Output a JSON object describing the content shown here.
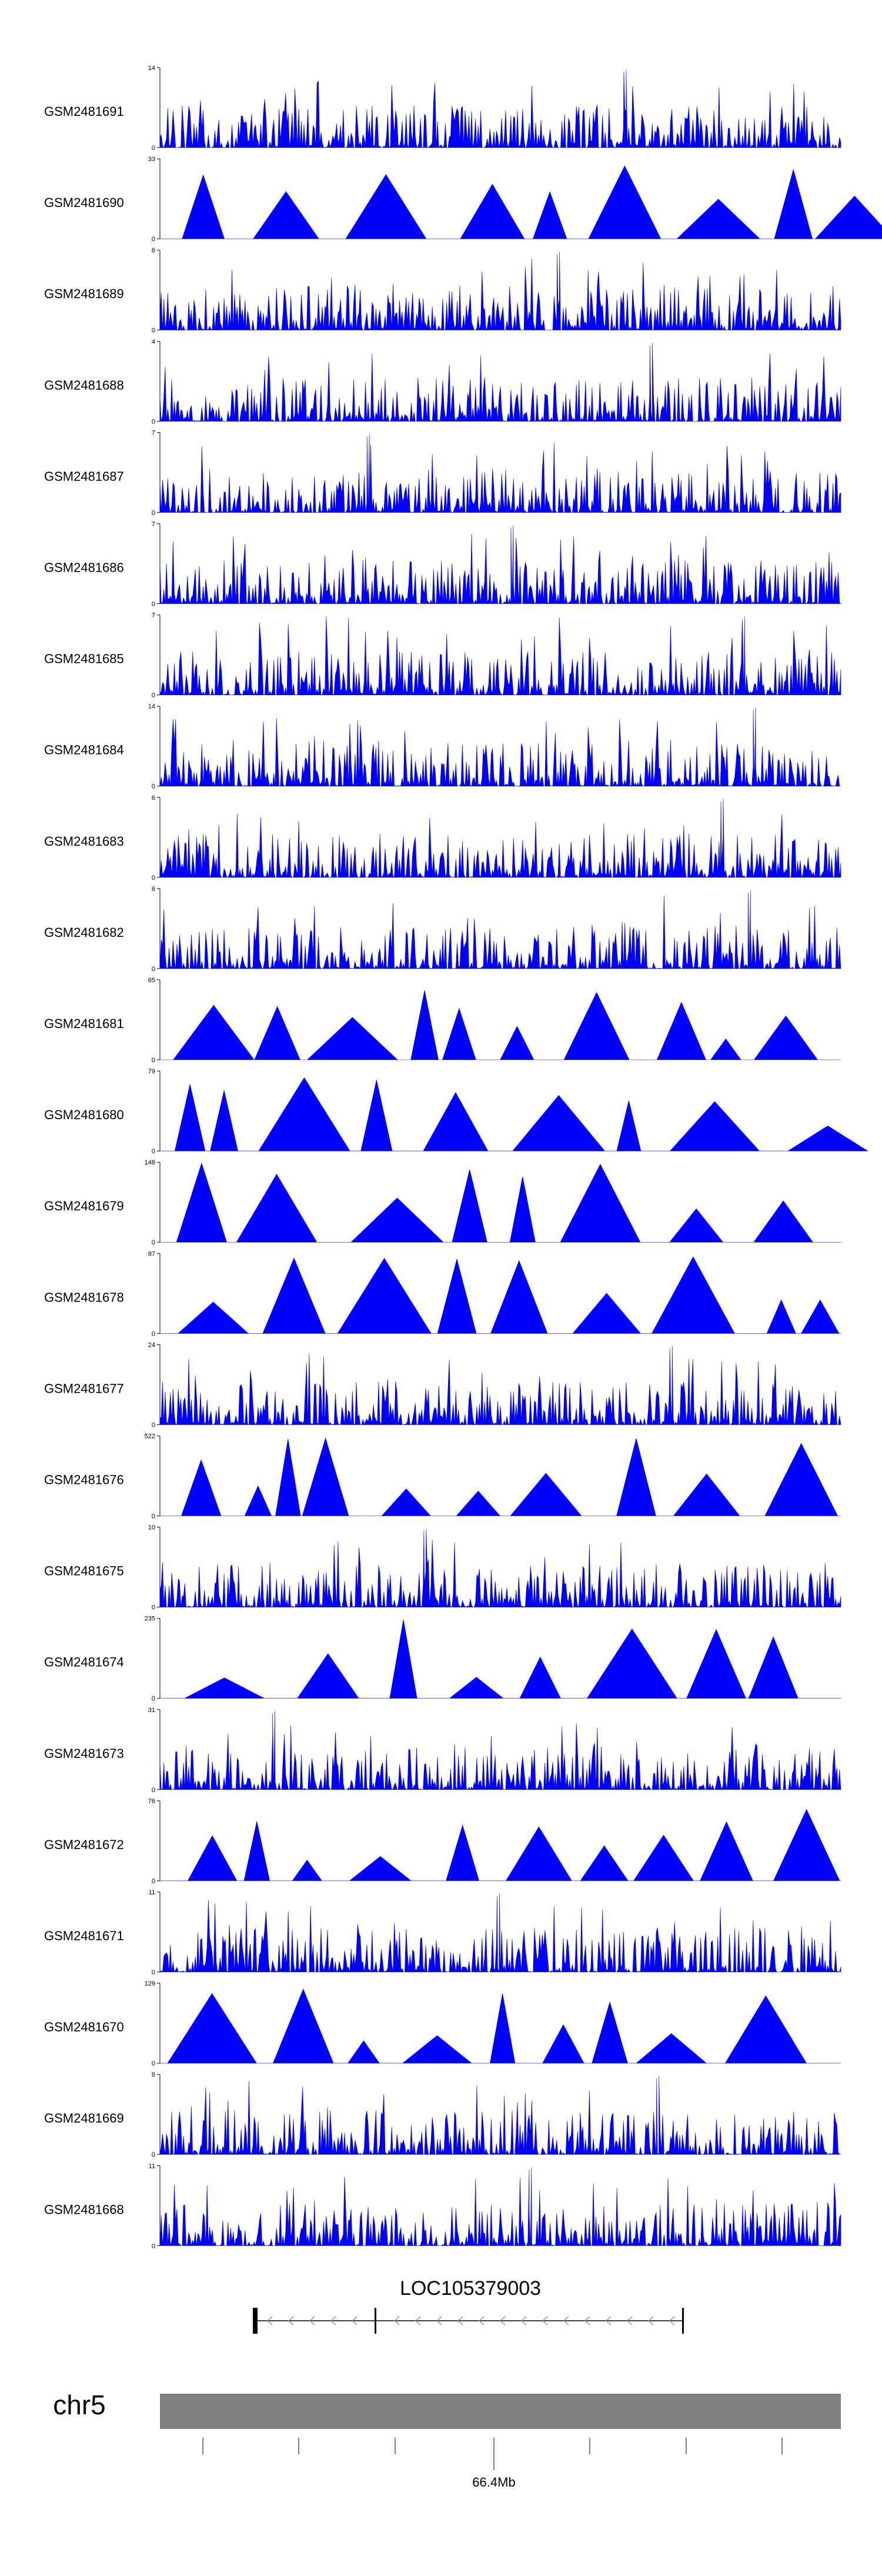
{
  "chart_data": {
    "type": "area",
    "title": "",
    "xlabel": "",
    "ylabel": "",
    "colors": {
      "signal": "#0000ff",
      "ideogram": "#808080",
      "gene": "#000000",
      "axis": "#000000"
    },
    "tracks": [
      {
        "name": "GSM2481691",
        "ymax": "14",
        "ymin": "0",
        "style": "noise",
        "peak_value": 14
      },
      {
        "name": "GSM2481690",
        "ymax": "33",
        "ymin": "0",
        "style": "peaks",
        "peak_value": 33
      },
      {
        "name": "GSM2481689",
        "ymax": "6",
        "ymin": "0",
        "style": "noise",
        "peak_value": 6
      },
      {
        "name": "GSM2481688",
        "ymax": "4",
        "ymin": "0",
        "style": "noise",
        "peak_value": 4
      },
      {
        "name": "GSM2481687",
        "ymax": "7",
        "ymin": "0",
        "style": "noise",
        "peak_value": 7
      },
      {
        "name": "GSM2481686",
        "ymax": "7",
        "ymin": "0",
        "style": "noise",
        "peak_value": 7
      },
      {
        "name": "GSM2481685",
        "ymax": "7",
        "ymin": "0",
        "style": "noise",
        "peak_value": 7
      },
      {
        "name": "GSM2481684",
        "ymax": "14",
        "ymin": "0",
        "style": "noise",
        "peak_value": 14
      },
      {
        "name": "GSM2481683",
        "ymax": "6",
        "ymin": "0",
        "style": "noise",
        "peak_value": 6
      },
      {
        "name": "GSM2481682",
        "ymax": "6",
        "ymin": "0",
        "style": "noise",
        "peak_value": 6
      },
      {
        "name": "GSM2481681",
        "ymax": "65",
        "ymin": "0",
        "style": "peaks",
        "peak_value": 65
      },
      {
        "name": "GSM2481680",
        "ymax": "79",
        "ymin": "0",
        "style": "peaks",
        "peak_value": 79
      },
      {
        "name": "GSM2481679",
        "ymax": "148",
        "ymin": "0",
        "style": "peaks",
        "peak_value": 148
      },
      {
        "name": "GSM2481678",
        "ymax": "87",
        "ymin": "0",
        "style": "peaks",
        "peak_value": 87
      },
      {
        "name": "GSM2481677",
        "ymax": "24",
        "ymin": "0",
        "style": "noise",
        "peak_value": 24
      },
      {
        "name": "GSM2481676",
        "ymax": "522",
        "ymin": "0",
        "style": "peaks",
        "peak_value": 522
      },
      {
        "name": "GSM2481675",
        "ymax": "10",
        "ymin": "0",
        "style": "noise",
        "peak_value": 10
      },
      {
        "name": "GSM2481674",
        "ymax": "235",
        "ymin": "0",
        "style": "peaks",
        "peak_value": 235
      },
      {
        "name": "GSM2481673",
        "ymax": "31",
        "ymin": "0",
        "style": "noise",
        "peak_value": 31
      },
      {
        "name": "GSM2481672",
        "ymax": "76",
        "ymin": "0",
        "style": "peaks",
        "peak_value": 76
      },
      {
        "name": "GSM2481671",
        "ymax": "11",
        "ymin": "0",
        "style": "noise",
        "peak_value": 11
      },
      {
        "name": "GSM2481670",
        "ymax": "129",
        "ymin": "0",
        "style": "peaks",
        "peak_value": 129
      },
      {
        "name": "GSM2481669",
        "ymax": "8",
        "ymin": "0",
        "style": "noise",
        "peak_value": 8
      },
      {
        "name": "GSM2481668",
        "ymax": "11",
        "ymin": "0",
        "style": "noise",
        "peak_value": 11
      }
    ],
    "gene": {
      "name": "LOC105379003",
      "strand": "-"
    },
    "chromosome": {
      "name": "chr5",
      "tick_label": "66.4Mb"
    }
  }
}
